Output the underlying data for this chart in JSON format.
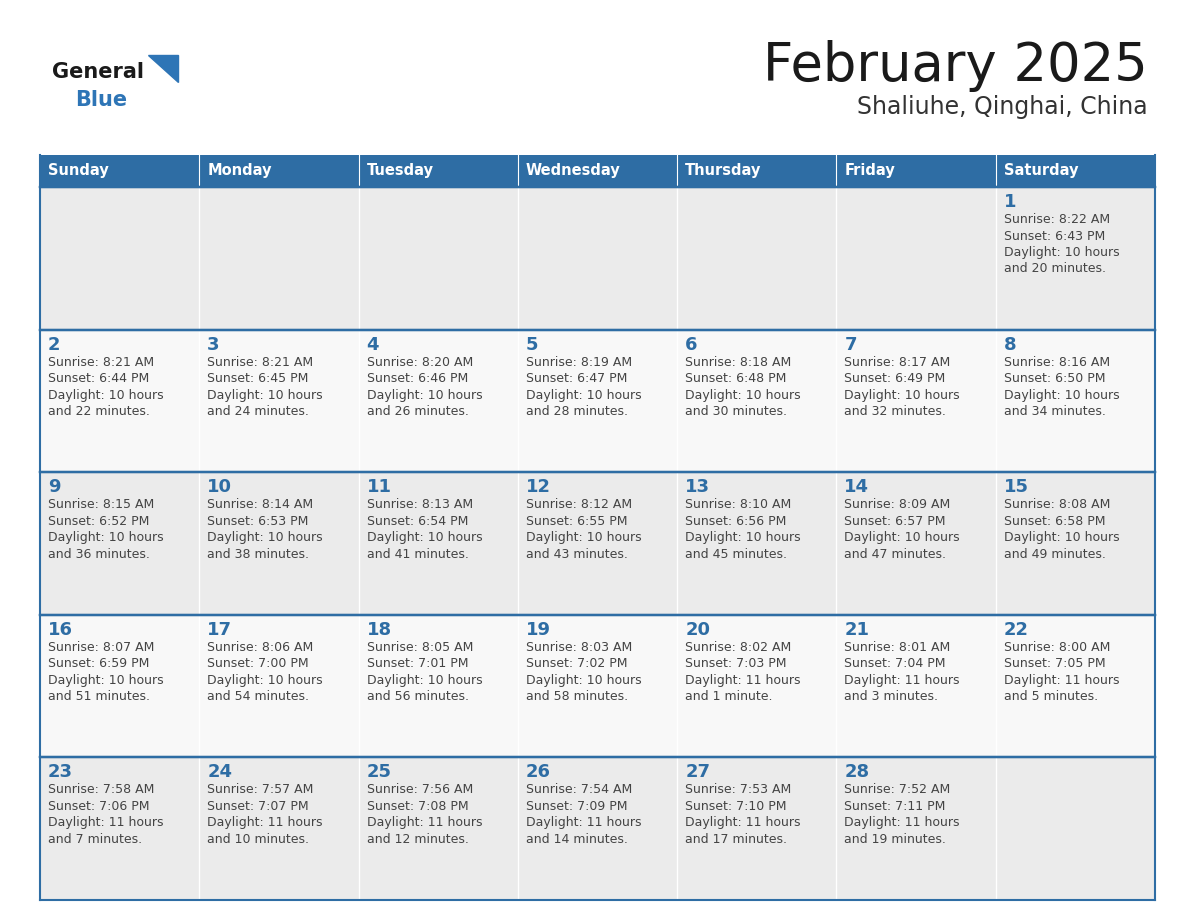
{
  "title": "February 2025",
  "subtitle": "Shaliuhe, Qinghai, China",
  "days_of_week": [
    "Sunday",
    "Monday",
    "Tuesday",
    "Wednesday",
    "Thursday",
    "Friday",
    "Saturday"
  ],
  "header_bg": "#2E6DA4",
  "header_text": "#FFFFFF",
  "cell_bg_odd": "#EBEBEB",
  "cell_bg_even": "#F8F8F8",
  "border_color": "#2E6DA4",
  "day_number_color": "#2E6DA4",
  "info_text_color": "#444444",
  "title_color": "#1a1a1a",
  "subtitle_color": "#333333",
  "logo_general_color": "#1a1a1a",
  "logo_blue_color": "#2E75B6",
  "calendar_data": [
    [
      null,
      null,
      null,
      null,
      null,
      null,
      {
        "day": 1,
        "sunrise": "8:22 AM",
        "sunset": "6:43 PM",
        "daylight_l1": "Daylight: 10 hours",
        "daylight_l2": "and 20 minutes."
      }
    ],
    [
      {
        "day": 2,
        "sunrise": "8:21 AM",
        "sunset": "6:44 PM",
        "daylight_l1": "Daylight: 10 hours",
        "daylight_l2": "and 22 minutes."
      },
      {
        "day": 3,
        "sunrise": "8:21 AM",
        "sunset": "6:45 PM",
        "daylight_l1": "Daylight: 10 hours",
        "daylight_l2": "and 24 minutes."
      },
      {
        "day": 4,
        "sunrise": "8:20 AM",
        "sunset": "6:46 PM",
        "daylight_l1": "Daylight: 10 hours",
        "daylight_l2": "and 26 minutes."
      },
      {
        "day": 5,
        "sunrise": "8:19 AM",
        "sunset": "6:47 PM",
        "daylight_l1": "Daylight: 10 hours",
        "daylight_l2": "and 28 minutes."
      },
      {
        "day": 6,
        "sunrise": "8:18 AM",
        "sunset": "6:48 PM",
        "daylight_l1": "Daylight: 10 hours",
        "daylight_l2": "and 30 minutes."
      },
      {
        "day": 7,
        "sunrise": "8:17 AM",
        "sunset": "6:49 PM",
        "daylight_l1": "Daylight: 10 hours",
        "daylight_l2": "and 32 minutes."
      },
      {
        "day": 8,
        "sunrise": "8:16 AM",
        "sunset": "6:50 PM",
        "daylight_l1": "Daylight: 10 hours",
        "daylight_l2": "and 34 minutes."
      }
    ],
    [
      {
        "day": 9,
        "sunrise": "8:15 AM",
        "sunset": "6:52 PM",
        "daylight_l1": "Daylight: 10 hours",
        "daylight_l2": "and 36 minutes."
      },
      {
        "day": 10,
        "sunrise": "8:14 AM",
        "sunset": "6:53 PM",
        "daylight_l1": "Daylight: 10 hours",
        "daylight_l2": "and 38 minutes."
      },
      {
        "day": 11,
        "sunrise": "8:13 AM",
        "sunset": "6:54 PM",
        "daylight_l1": "Daylight: 10 hours",
        "daylight_l2": "and 41 minutes."
      },
      {
        "day": 12,
        "sunrise": "8:12 AM",
        "sunset": "6:55 PM",
        "daylight_l1": "Daylight: 10 hours",
        "daylight_l2": "and 43 minutes."
      },
      {
        "day": 13,
        "sunrise": "8:10 AM",
        "sunset": "6:56 PM",
        "daylight_l1": "Daylight: 10 hours",
        "daylight_l2": "and 45 minutes."
      },
      {
        "day": 14,
        "sunrise": "8:09 AM",
        "sunset": "6:57 PM",
        "daylight_l1": "Daylight: 10 hours",
        "daylight_l2": "and 47 minutes."
      },
      {
        "day": 15,
        "sunrise": "8:08 AM",
        "sunset": "6:58 PM",
        "daylight_l1": "Daylight: 10 hours",
        "daylight_l2": "and 49 minutes."
      }
    ],
    [
      {
        "day": 16,
        "sunrise": "8:07 AM",
        "sunset": "6:59 PM",
        "daylight_l1": "Daylight: 10 hours",
        "daylight_l2": "and 51 minutes."
      },
      {
        "day": 17,
        "sunrise": "8:06 AM",
        "sunset": "7:00 PM",
        "daylight_l1": "Daylight: 10 hours",
        "daylight_l2": "and 54 minutes."
      },
      {
        "day": 18,
        "sunrise": "8:05 AM",
        "sunset": "7:01 PM",
        "daylight_l1": "Daylight: 10 hours",
        "daylight_l2": "and 56 minutes."
      },
      {
        "day": 19,
        "sunrise": "8:03 AM",
        "sunset": "7:02 PM",
        "daylight_l1": "Daylight: 10 hours",
        "daylight_l2": "and 58 minutes."
      },
      {
        "day": 20,
        "sunrise": "8:02 AM",
        "sunset": "7:03 PM",
        "daylight_l1": "Daylight: 11 hours",
        "daylight_l2": "and 1 minute."
      },
      {
        "day": 21,
        "sunrise": "8:01 AM",
        "sunset": "7:04 PM",
        "daylight_l1": "Daylight: 11 hours",
        "daylight_l2": "and 3 minutes."
      },
      {
        "day": 22,
        "sunrise": "8:00 AM",
        "sunset": "7:05 PM",
        "daylight_l1": "Daylight: 11 hours",
        "daylight_l2": "and 5 minutes."
      }
    ],
    [
      {
        "day": 23,
        "sunrise": "7:58 AM",
        "sunset": "7:06 PM",
        "daylight_l1": "Daylight: 11 hours",
        "daylight_l2": "and 7 minutes."
      },
      {
        "day": 24,
        "sunrise": "7:57 AM",
        "sunset": "7:07 PM",
        "daylight_l1": "Daylight: 11 hours",
        "daylight_l2": "and 10 minutes."
      },
      {
        "day": 25,
        "sunrise": "7:56 AM",
        "sunset": "7:08 PM",
        "daylight_l1": "Daylight: 11 hours",
        "daylight_l2": "and 12 minutes."
      },
      {
        "day": 26,
        "sunrise": "7:54 AM",
        "sunset": "7:09 PM",
        "daylight_l1": "Daylight: 11 hours",
        "daylight_l2": "and 14 minutes."
      },
      {
        "day": 27,
        "sunrise": "7:53 AM",
        "sunset": "7:10 PM",
        "daylight_l1": "Daylight: 11 hours",
        "daylight_l2": "and 17 minutes."
      },
      {
        "day": 28,
        "sunrise": "7:52 AM",
        "sunset": "7:11 PM",
        "daylight_l1": "Daylight: 11 hours",
        "daylight_l2": "and 19 minutes."
      },
      null
    ]
  ]
}
